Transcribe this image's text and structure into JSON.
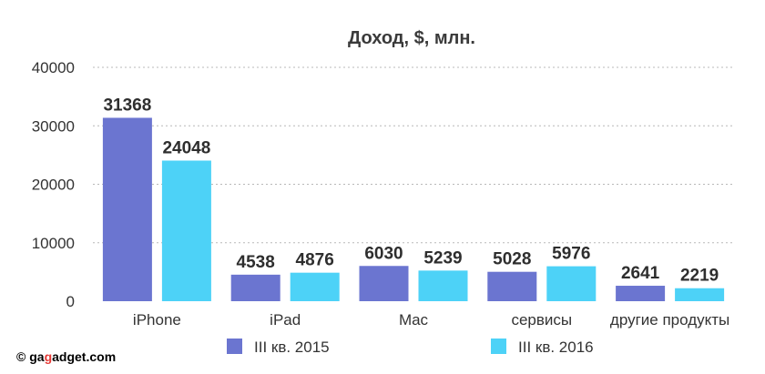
{
  "chart_data": {
    "type": "bar",
    "title": "Доход, $, млн.",
    "xlabel": "",
    "ylabel": "",
    "categories": [
      "iPhone",
      "iPad",
      "Mac",
      "сервисы",
      "другие продукты"
    ],
    "series": [
      {
        "name": "III кв. 2015",
        "color": "#6b75d0",
        "values": [
          31368,
          4538,
          6030,
          5028,
          2641
        ]
      },
      {
        "name": "III кв. 2016",
        "color": "#4dd2f7",
        "values": [
          24048,
          4876,
          5239,
          5976,
          2219
        ]
      }
    ],
    "ylim": [
      0,
      40000
    ],
    "yticks": [
      0,
      10000,
      20000,
      30000,
      40000
    ],
    "grid": true,
    "legend_position": "bottom",
    "data_labels": true
  },
  "watermark": {
    "copyright": "©",
    "brand_prefix": "ga",
    "brand_mid": "g",
    "brand_suffix": "adget.com"
  }
}
